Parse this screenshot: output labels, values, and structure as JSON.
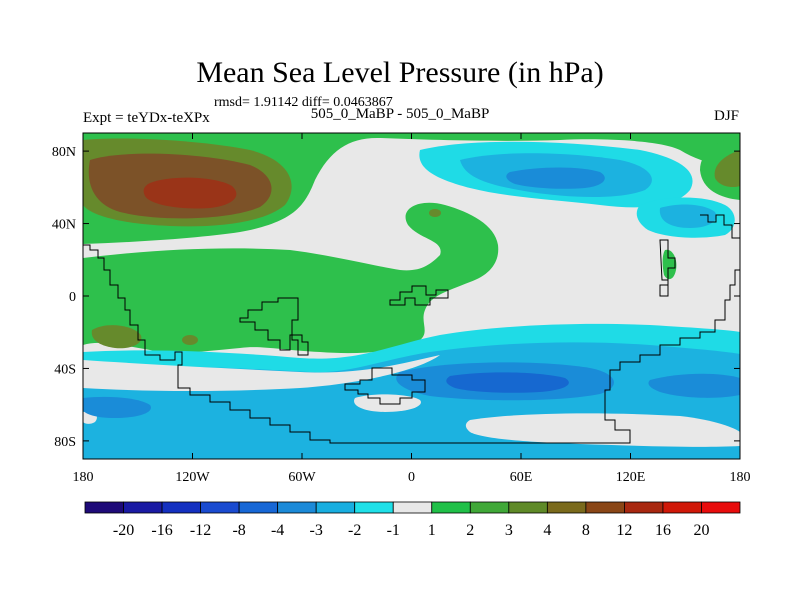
{
  "chart_data": {
    "type": "heatmap",
    "title": "Mean Sea Level Pressure (in hPa)",
    "stats_text": "rmsd= 1.91142 diff= 0.0463867",
    "left_label": "Expt = teYDx-teXPx",
    "center_label": "505_0_MaBP - 505_0_MaBP",
    "right_label": "DJF",
    "x_ticks": [
      "180",
      "120W",
      "60W",
      "0",
      "60E",
      "120E",
      "180"
    ],
    "x_tick_values": [
      -180,
      -120,
      -60,
      0,
      60,
      120,
      180
    ],
    "y_ticks": [
      "80N",
      "40N",
      "0",
      "40S",
      "80S"
    ],
    "y_tick_values": [
      80,
      40,
      0,
      -40,
      -80
    ],
    "xlim": [
      -180,
      180
    ],
    "ylim": [
      -90,
      90
    ],
    "colorbar": {
      "labels": [
        "-20",
        "-16",
        "-12",
        "-8",
        "-4",
        "-3",
        "-2",
        "-1",
        "1",
        "2",
        "3",
        "4",
        "8",
        "12",
        "16",
        "20"
      ],
      "colors": [
        "#1e0a78",
        "#1a1aa3",
        "#1430c0",
        "#1a4bd0",
        "#1767d6",
        "#1c8ad8",
        "#18aee0",
        "#1fe0e8",
        "#e8e8e8",
        "#20c048",
        "#40a838",
        "#5f8a28",
        "#7a6a1c",
        "#8a4616",
        "#a82810",
        "#d01808",
        "#e80c0c"
      ]
    }
  },
  "colors": {
    "neutral": "#e8e8e8",
    "light_green": "#2ec04c",
    "olive": "#668a2c",
    "brown": "#7c5228",
    "red_brown": "#9a3418",
    "cyan": "#1fdbe6",
    "sky": "#1cb2e0",
    "blue": "#1a8cd8",
    "deep_blue": "#1668d0"
  }
}
